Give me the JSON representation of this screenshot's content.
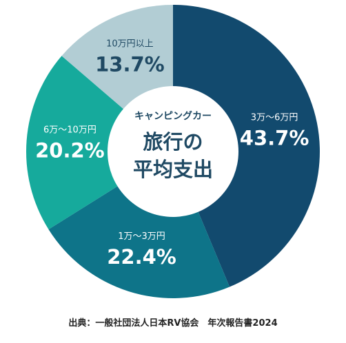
{
  "chart_data": {
    "type": "pie",
    "variant": "donut",
    "center_title_line1": "キャンピングカー",
    "center_title_line2": "旅行の",
    "center_title_line3": "平均支出",
    "slices": [
      {
        "label": "3万～6万円",
        "value": 43.7,
        "value_text": "43.7%",
        "color": "#124a6e",
        "text_color": "#ffffff"
      },
      {
        "label": "1万～3万円",
        "value": 22.4,
        "value_text": "22.4%",
        "color": "#0e7489",
        "text_color": "#ffffff"
      },
      {
        "label": "6万～10万円",
        "value": 20.2,
        "value_text": "20.2%",
        "color": "#16aa9c",
        "text_color": "#ffffff"
      },
      {
        "label": "10万円以上",
        "value": 13.7,
        "value_text": "13.7%",
        "color": "#b2cdd4",
        "text_color": "#1f4963"
      }
    ],
    "source": "出典：一般社団法人日本RV協会　年次報告書2024"
  }
}
